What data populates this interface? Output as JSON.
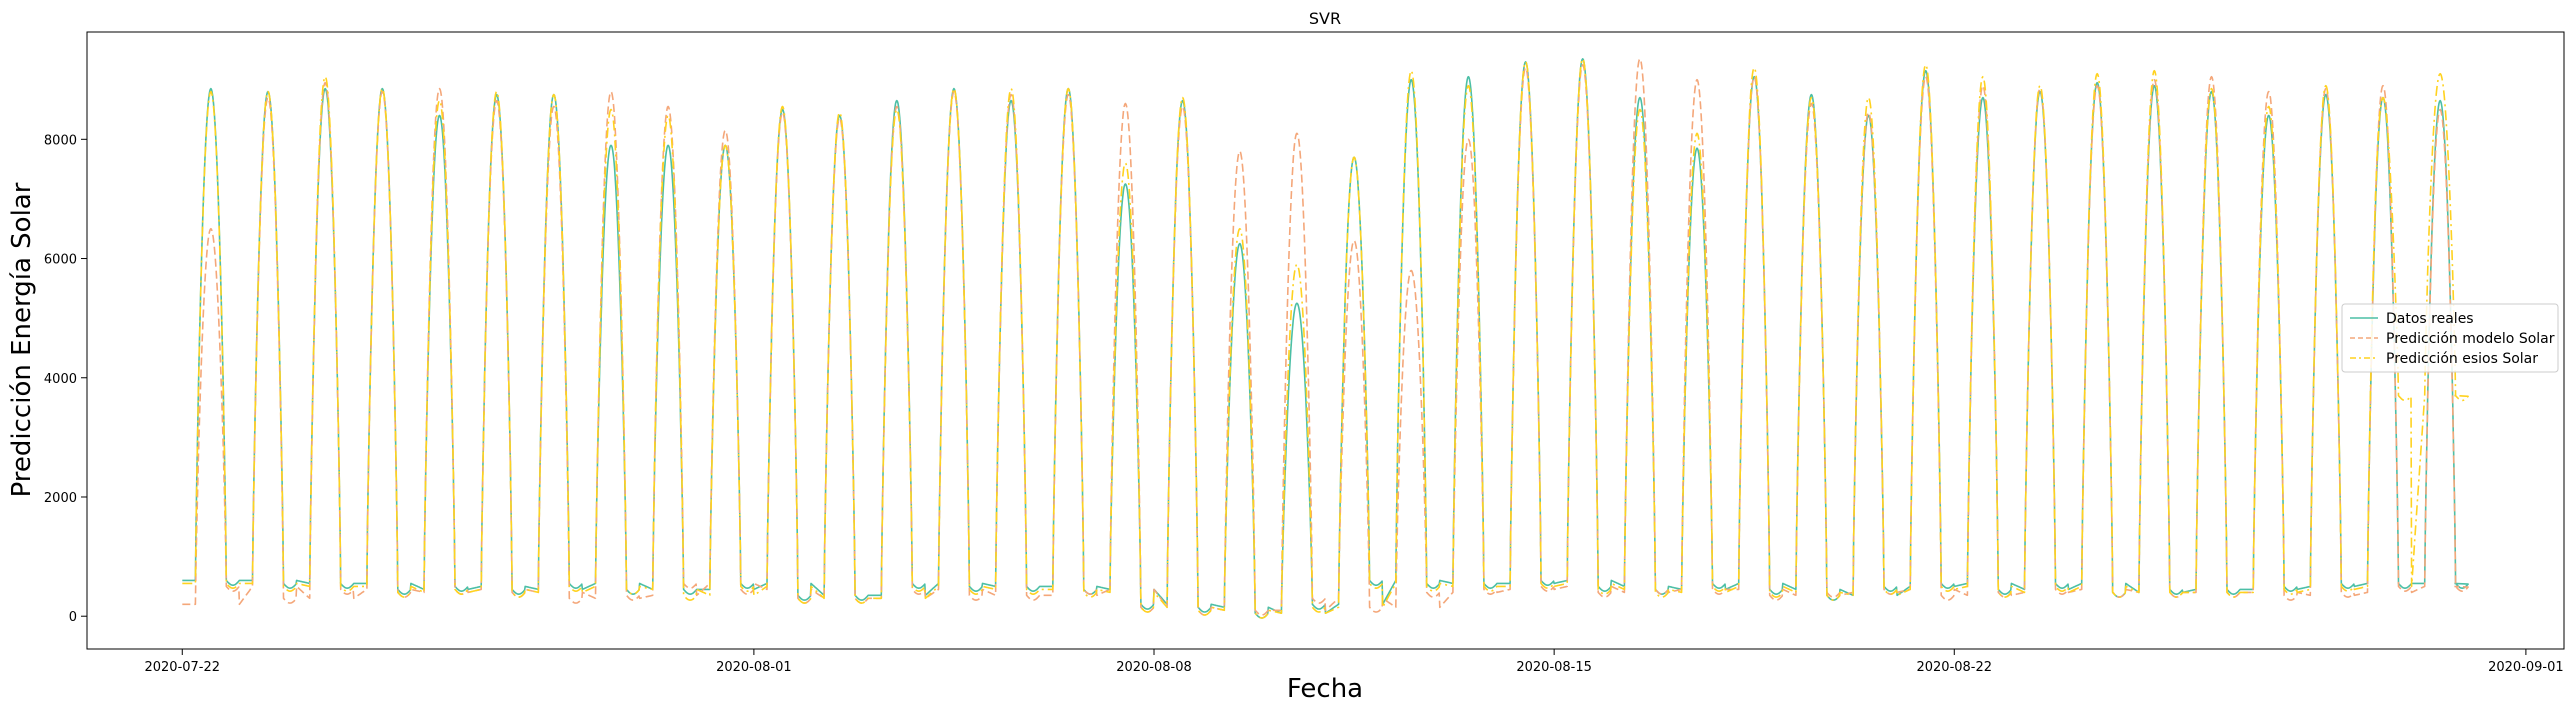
{
  "chart_data": {
    "type": "line",
    "title": "SVR",
    "xlabel": "Fecha",
    "ylabel": "Predicción Energía Solar",
    "x_ticks": [
      "2020-07-22",
      "2020-08-01",
      "2020-08-08",
      "2020-08-15",
      "2020-08-22",
      "2020-09-01"
    ],
    "xlim": [
      "2020-07-20T08:00",
      "2020-09-01T16:00"
    ],
    "y_ticks": [
      0,
      2000,
      4000,
      6000,
      8000
    ],
    "ylim": [
      -550,
      9800
    ],
    "grid": false,
    "legend_position": "center-right",
    "x_start": "2020-07-22",
    "x_step": "1 day",
    "series": [
      {
        "name": "Datos reales",
        "color": "#4cbfa6",
        "style": "solid",
        "daily_peak": [
          8850,
          8800,
          8850,
          8850,
          8400,
          8750,
          8750,
          7900,
          7900,
          7900,
          8500,
          8400,
          8650,
          8850,
          8650,
          8850,
          7250,
          8650,
          6250,
          5250,
          7700,
          9000,
          9050,
          9300,
          9350,
          8700,
          7850,
          9050,
          8750,
          8400,
          9150,
          8700,
          8800,
          8950,
          8900,
          8800,
          8400,
          8750,
          8700,
          8650
        ],
        "daily_night": [
          600,
          600,
          550,
          550,
          450,
          500,
          450,
          550,
          450,
          450,
          550,
          350,
          350,
          550,
          500,
          500,
          450,
          200,
          150,
          50,
          200,
          600,
          550,
          550,
          600,
          500,
          450,
          550,
          450,
          350,
          500,
          550,
          450,
          550,
          400,
          450,
          450,
          500,
          550,
          550
        ]
      },
      {
        "name": "Predicción modelo Solar",
        "color": "#f4a77a",
        "style": "dashed",
        "daily_peak": [
          6500,
          8700,
          8950,
          8800,
          8850,
          8650,
          8550,
          8800,
          8550,
          8150,
          8450,
          8350,
          8550,
          8800,
          8750,
          8750,
          8600,
          8550,
          7800,
          8100,
          6300,
          5800,
          8000,
          9200,
          9250,
          9350,
          9000,
          9050,
          8600,
          8450,
          9050,
          8900,
          8850,
          8900,
          9000,
          9050,
          8800,
          8850,
          8900,
          8500
        ],
        "daily_night": [
          200,
          500,
          300,
          450,
          400,
          450,
          400,
          300,
          350,
          550,
          450,
          300,
          300,
          450,
          350,
          350,
          450,
          150,
          100,
          100,
          300,
          150,
          400,
          450,
          500,
          400,
          450,
          450,
          350,
          400,
          450,
          350,
          400,
          450,
          400,
          400,
          400,
          350,
          400,
          500
        ]
      },
      {
        "name": "Predicción esios Solar",
        "color": "#ffd21f",
        "style": "dashdot",
        "daily_peak": [
          8800,
          8800,
          9050,
          8850,
          8650,
          8800,
          8750,
          8500,
          8400,
          7900,
          8550,
          8450,
          8500,
          8850,
          8850,
          8850,
          7600,
          8700,
          6500,
          5900,
          7700,
          9150,
          8900,
          9300,
          9350,
          8500,
          8100,
          9200,
          8700,
          8700,
          9250,
          9050,
          8900,
          9100,
          9150,
          8850,
          8550,
          8900,
          8700,
          9100
        ],
        "daily_night": [
          550,
          550,
          500,
          500,
          400,
          450,
          400,
          500,
          450,
          350,
          500,
          300,
          300,
          500,
          450,
          450,
          400,
          150,
          100,
          50,
          150,
          550,
          500,
          500,
          550,
          450,
          400,
          500,
          400,
          350,
          450,
          500,
          400,
          500,
          400,
          400,
          400,
          450,
          500,
          3700
        ]
      }
    ]
  }
}
